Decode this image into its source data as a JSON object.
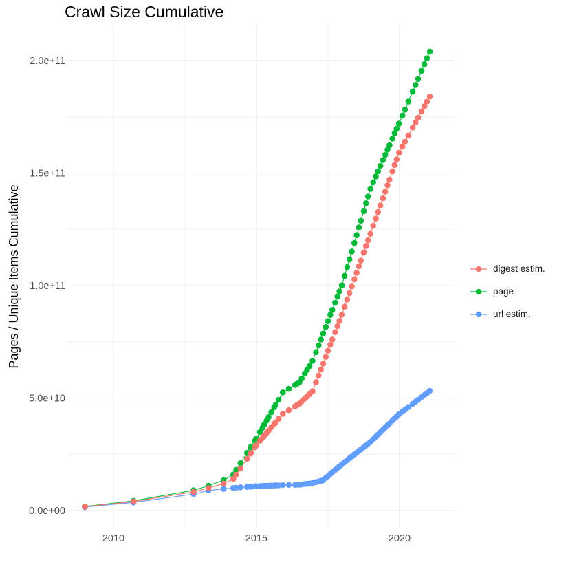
{
  "title": "Crawl Size Cumulative",
  "y_axis_label": "Pages / Unique Items Cumulative",
  "legend": {
    "position": "right",
    "entries": [
      {
        "label": "digest estim.",
        "color": "#F8766D"
      },
      {
        "label": "page",
        "color": "#00BA38"
      },
      {
        "label": "url estim.",
        "color": "#619CFF"
      }
    ]
  },
  "colors": {
    "background": "#FFFFFF",
    "grid_major": "#E5E5E5",
    "grid_minor": "#F2F2F2",
    "tick_text": "#4D4D4D",
    "title_text": "#000000"
  },
  "chart_data": {
    "type": "line",
    "title": "Crawl Size Cumulative",
    "xlabel": "",
    "ylabel": "Pages / Unique Items Cumulative",
    "grid": true,
    "legend_position": "right",
    "value_unit": "1e9 items (values_e9 are billions; axis shown in scientific notation)",
    "xlim": [
      2008.4,
      2021.9
    ],
    "ylim_e9": [
      -8,
      214
    ],
    "x_ticks": [
      {
        "value": 2010,
        "label": "2010"
      },
      {
        "value": 2015,
        "label": "2015"
      },
      {
        "value": 2020,
        "label": "2020"
      }
    ],
    "x_minor_ticks": [
      2012.5,
      2017.5
    ],
    "y_ticks": [
      {
        "value_e9": 0,
        "label": "0.0e+00"
      },
      {
        "value_e9": 50,
        "label": "5.0e+10"
      },
      {
        "value_e9": 100,
        "label": "1.0e+11"
      },
      {
        "value_e9": 150,
        "label": "1.5e+11"
      },
      {
        "value_e9": 200,
        "label": "2.0e+11"
      }
    ],
    "y_minor_ticks_e9": [
      25,
      75,
      125,
      175
    ],
    "x_years": [
      2009.0,
      2010.7,
      2012.8,
      2013.32,
      2013.85,
      2014.19,
      2014.29,
      2014.44,
      2014.67,
      2014.79,
      2014.81,
      2014.94,
      2014.99,
      2015.12,
      2015.21,
      2015.27,
      2015.35,
      2015.42,
      2015.52,
      2015.62,
      2015.67,
      2015.77,
      2015.92,
      2016.13,
      2016.35,
      2016.42,
      2016.5,
      2016.58,
      2016.69,
      2016.77,
      2016.85,
      2016.96,
      2017.08,
      2017.17,
      2017.25,
      2017.33,
      2017.42,
      2017.5,
      2017.58,
      2017.65,
      2017.75,
      2017.83,
      2017.9,
      2017.98,
      2018.08,
      2018.17,
      2018.25,
      2018.33,
      2018.42,
      2018.5,
      2018.58,
      2018.65,
      2018.75,
      2018.83,
      2018.9,
      2018.98,
      2019.08,
      2019.17,
      2019.25,
      2019.33,
      2019.42,
      2019.5,
      2019.58,
      2019.65,
      2019.75,
      2019.83,
      2019.9,
      2019.98,
      2020.1,
      2020.19,
      2020.31,
      2020.46,
      2020.56,
      2020.65,
      2020.77,
      2020.87,
      2020.96,
      2021.06
    ],
    "series": [
      {
        "name": "digest estim.",
        "color": "#F8766D",
        "values_e9": [
          1.7,
          4,
          8.3,
          10,
          12,
          14,
          15.9,
          18.7,
          23,
          25.3,
          25.6,
          28.1,
          29,
          31,
          32.3,
          33.2,
          34.4,
          35.5,
          37,
          38.5,
          39.2,
          40.7,
          43,
          44.6,
          46.3,
          46.9,
          47.5,
          48.5,
          49.8,
          50.7,
          51.7,
          53,
          57,
          60,
          62.7,
          65.3,
          68.3,
          71,
          73.7,
          76,
          79.3,
          82,
          84.3,
          87,
          90.6,
          93.8,
          96.7,
          99.6,
          102.8,
          105.7,
          108.6,
          111.1,
          114.7,
          117.6,
          120.1,
          123,
          126.6,
          129.8,
          132.7,
          135.6,
          138.8,
          141.7,
          144.6,
          147.1,
          150.7,
          153.6,
          156.1,
          159,
          161.8,
          163.9,
          166.7,
          170.2,
          172.5,
          174.6,
          177.4,
          179.7,
          181.8,
          184
        ]
      },
      {
        "name": "page",
        "color": "#00BA38",
        "values_e9": [
          1.8,
          4.3,
          9,
          11,
          13.5,
          16,
          18,
          21,
          25.6,
          28,
          28.4,
          31,
          32,
          34.9,
          36.8,
          38.2,
          39.9,
          41.5,
          43.7,
          45.9,
          47,
          49.2,
          52.5,
          54.1,
          55.8,
          56.4,
          57,
          58.7,
          60.9,
          62.6,
          64.2,
          66.5,
          70.4,
          73.4,
          76,
          78.7,
          81.6,
          84.2,
          86.9,
          89.2,
          92.4,
          95.1,
          97.4,
          100,
          104.3,
          108.2,
          111.6,
          115.1,
          118.9,
          122.4,
          125.8,
          128.8,
          133.1,
          136.6,
          139.6,
          143,
          145.9,
          148.5,
          150.8,
          153.2,
          155.8,
          158.1,
          160.4,
          162.4,
          165.3,
          167.7,
          169.7,
          172,
          175.6,
          178.2,
          181.8,
          186.2,
          189.2,
          191.8,
          195.4,
          198.4,
          201,
          204
        ]
      },
      {
        "name": "url estim.",
        "color": "#619CFF",
        "values_e9": [
          1.5,
          3.6,
          7.3,
          8.9,
          9.6,
          10,
          10.1,
          10.3,
          10.5,
          10.6,
          10.6,
          10.8,
          10.8,
          10.9,
          10.9,
          11,
          11,
          11,
          11.1,
          11.1,
          11.2,
          11.2,
          11.3,
          11.4,
          11.4,
          11.5,
          11.5,
          11.6,
          11.8,
          11.9,
          12,
          12.2,
          12.6,
          12.9,
          13.2,
          13.5,
          14.5,
          15.3,
          16.2,
          17,
          18,
          18.9,
          19.6,
          20.5,
          21.5,
          22.4,
          23.2,
          24,
          24.9,
          25.7,
          26.5,
          27.2,
          28.2,
          29,
          29.7,
          30.5,
          31.7,
          32.8,
          33.8,
          34.8,
          35.9,
          36.9,
          37.9,
          38.7,
          40,
          41,
          41.8,
          42.8,
          44,
          44.8,
          46,
          47.4,
          48.4,
          49.2,
          50.4,
          51.4,
          52.2,
          53.2
        ]
      }
    ]
  }
}
